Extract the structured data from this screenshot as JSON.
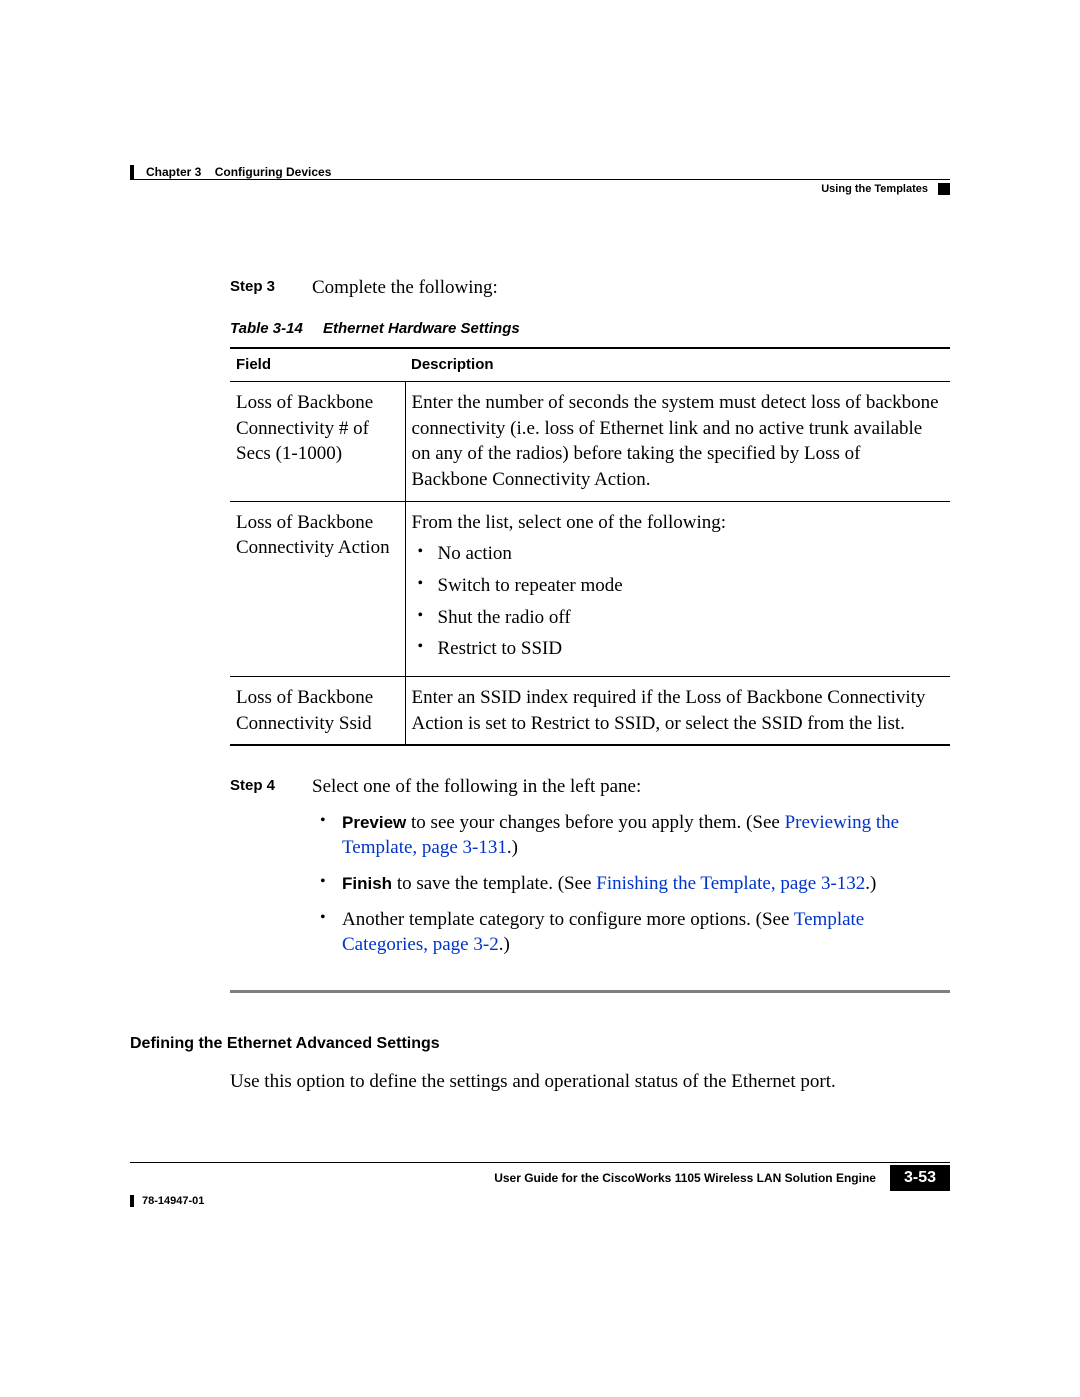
{
  "header": {
    "chapter_label": "Chapter 3",
    "chapter_title": "Configuring Devices",
    "section_title": "Using the Templates"
  },
  "step3": {
    "label": "Step 3",
    "text": "Complete the following:"
  },
  "table": {
    "number": "Table 3-14",
    "title": "Ethernet Hardware Settings",
    "col1": "Field",
    "col2": "Description",
    "rows": [
      {
        "field": "Loss of Backbone Connectivity # of Secs (1-1000)",
        "desc": "Enter the number of seconds the system must detect loss of backbone connectivity (i.e. loss of Ethernet link and no active trunk available on any of the radios) before taking the specified by Loss of Backbone Connectivity Action."
      },
      {
        "field": "Loss of Backbone Connectivity Action",
        "desc_lead": "From the list, select one of the following:",
        "items": [
          "No action",
          "Switch to repeater mode",
          "Shut the radio off",
          "Restrict to SSID"
        ]
      },
      {
        "field": "Loss of Backbone Connectivity Ssid",
        "desc": "Enter an SSID index required if the Loss of Backbone Connectivity Action is set to Restrict to SSID, or select the SSID from the list."
      }
    ]
  },
  "step4": {
    "label": "Step 4",
    "text": "Select one of the following in the left pane:",
    "bullets": {
      "b1_bold": "Preview",
      "b1_text": " to see your changes before you apply them. (See ",
      "b1_link": "Previewing the Template, page 3-131",
      "b1_after": ".)",
      "b2_bold": "Finish",
      "b2_text": " to save the template. (See ",
      "b2_link": "Finishing the Template, page 3-132",
      "b2_after": ".)",
      "b3_text": "Another template category to configure more options. (See ",
      "b3_link": "Template Categories, page 3-2",
      "b3_after": ".)"
    }
  },
  "subhead": "Defining the Ethernet Advanced Settings",
  "sub_para": "Use this option to define the settings and operational status of the Ethernet port.",
  "footer": {
    "guide": "User Guide for the CiscoWorks 1105 Wireless LAN Solution Engine",
    "page": "3-53",
    "docnum": "78-14947-01"
  }
}
